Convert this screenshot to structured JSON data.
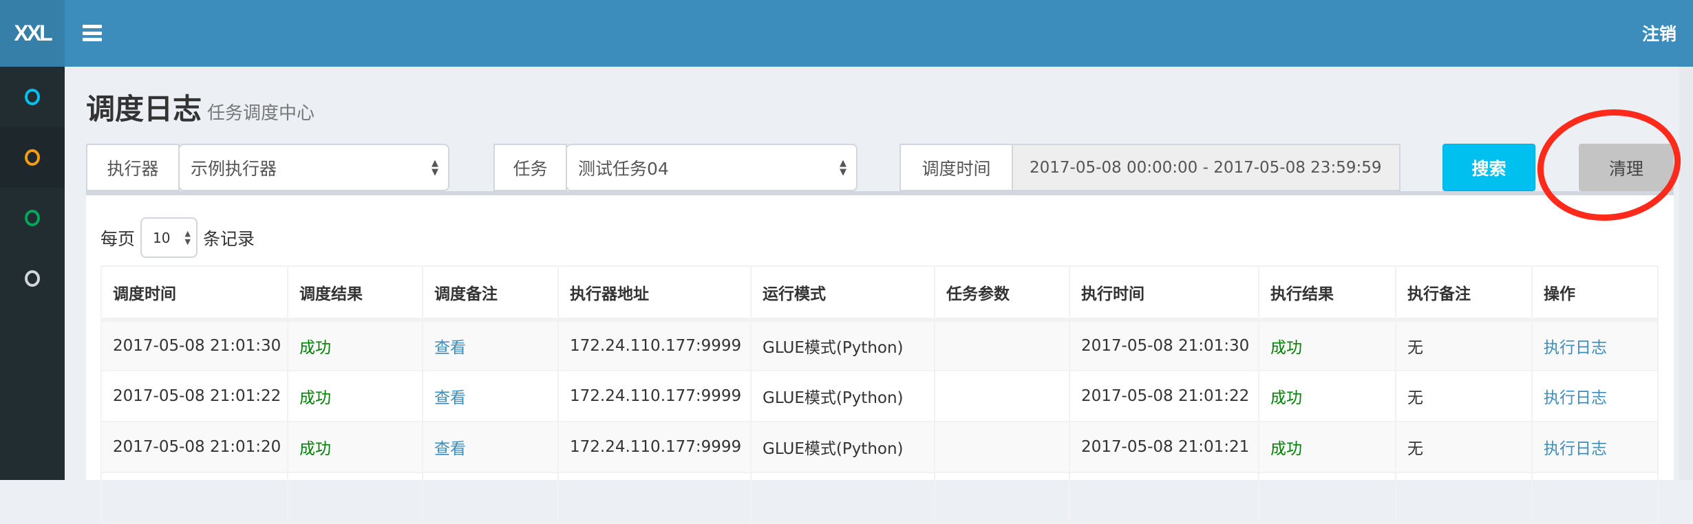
{
  "header": {
    "logo": "XXL",
    "logout_label": "注销"
  },
  "sidebar": {
    "items": [
      {
        "icon": "circle-icon",
        "color": "#00c0ef",
        "active": false
      },
      {
        "icon": "circle-icon",
        "color": "#f39c12",
        "active": true
      },
      {
        "icon": "circle-icon",
        "color": "#00a65a",
        "active": false
      },
      {
        "icon": "circle-icon",
        "color": "#d2d6de",
        "active": false
      }
    ]
  },
  "page": {
    "title": "调度日志",
    "subtitle": "任务调度中心"
  },
  "filters": {
    "executor_label": "执行器",
    "executor_value": "示例执行器",
    "job_label": "任务",
    "job_value": "测试任务04",
    "time_label": "调度时间",
    "time_value": "2017-05-08 00:00:00 - 2017-05-08 23:59:59",
    "search_label": "搜索",
    "clear_label": "清理"
  },
  "annotation": {
    "shape": "red-ellipse",
    "target": "清理",
    "color": "#ff2a1a"
  },
  "pagesize": {
    "prefix": "每页",
    "value": "10",
    "suffix": "条记录"
  },
  "table": {
    "columns": [
      "调度时间",
      "调度结果",
      "调度备注",
      "执行器地址",
      "运行模式",
      "任务参数",
      "执行时间",
      "执行结果",
      "执行备注",
      "操作"
    ],
    "rows": [
      [
        "2017-05-08 21:01:30",
        "成功",
        "查看",
        "172.24.110.177:9999",
        "GLUE模式(Python)",
        "",
        "2017-05-08 21:01:30",
        "成功",
        "无",
        "执行日志"
      ],
      [
        "2017-05-08 21:01:22",
        "成功",
        "查看",
        "172.24.110.177:9999",
        "GLUE模式(Python)",
        "",
        "2017-05-08 21:01:22",
        "成功",
        "无",
        "执行日志"
      ],
      [
        "2017-05-08 21:01:20",
        "成功",
        "查看",
        "172.24.110.177:9999",
        "GLUE模式(Python)",
        "",
        "2017-05-08 21:01:21",
        "成功",
        "无",
        "执行日志"
      ]
    ]
  },
  "colors": {
    "header": "#3c8dbc",
    "sidebar": "#222d32",
    "success": "#008000",
    "link": "#3c8dbc",
    "search_button": "#00c0ef"
  }
}
